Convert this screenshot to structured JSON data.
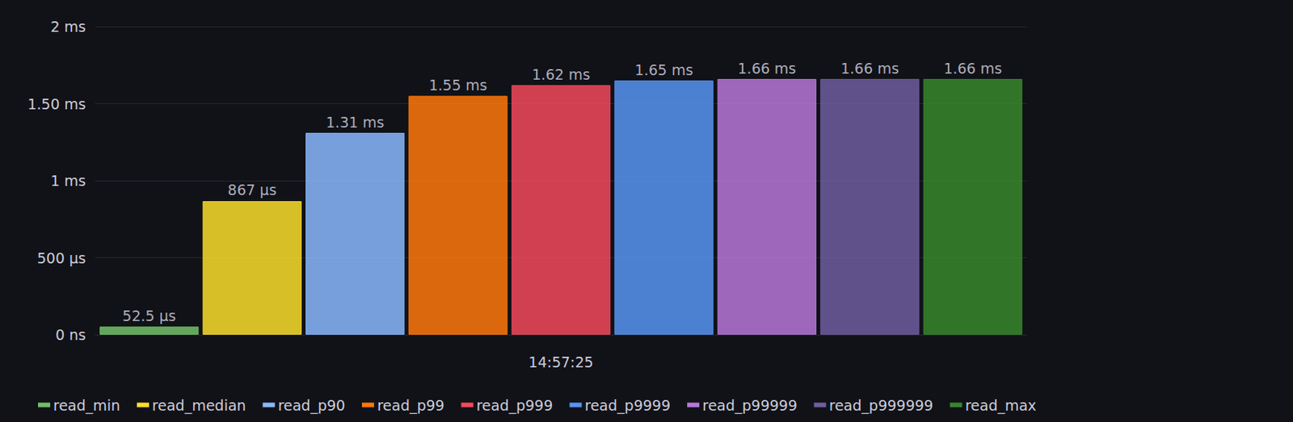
{
  "chart_data": {
    "type": "bar",
    "categories": [
      "14:57:25"
    ],
    "series": [
      {
        "name": "read_min",
        "color": "#73BF69",
        "values": [
          0.0525
        ],
        "value_labels": [
          "52.5 µs"
        ]
      },
      {
        "name": "read_median",
        "color": "#FADE2A",
        "values": [
          0.867
        ],
        "value_labels": [
          "867 µs"
        ]
      },
      {
        "name": "read_p90",
        "color": "#8AB8FF",
        "values": [
          1.31
        ],
        "value_labels": [
          "1.31 ms"
        ]
      },
      {
        "name": "read_p99",
        "color": "#FF780A",
        "values": [
          1.55
        ],
        "value_labels": [
          "1.55 ms"
        ]
      },
      {
        "name": "read_p999",
        "color": "#F2495C",
        "values": [
          1.62
        ],
        "value_labels": [
          "1.62 ms"
        ]
      },
      {
        "name": "read_p9999",
        "color": "#5794F2",
        "values": [
          1.65
        ],
        "value_labels": [
          "1.65 ms"
        ]
      },
      {
        "name": "read_p99999",
        "color": "#B877D9",
        "values": [
          1.66
        ],
        "value_labels": [
          "1.66 ms"
        ]
      },
      {
        "name": "read_p999999",
        "color": "#705DA0",
        "values": [
          1.66
        ],
        "value_labels": [
          "1.66 ms"
        ]
      },
      {
        "name": "read_max",
        "color": "#37872D",
        "values": [
          1.66
        ],
        "value_labels": [
          "1.66 ms"
        ]
      }
    ],
    "ylim": [
      0,
      2
    ],
    "yticks": [
      {
        "value": 0,
        "label": "0 ns"
      },
      {
        "value": 0.5,
        "label": "500 µs"
      },
      {
        "value": 1,
        "label": "1 ms"
      },
      {
        "value": 1.5,
        "label": "1.50 ms"
      },
      {
        "value": 2,
        "label": "2 ms"
      }
    ],
    "grid": true,
    "legend": "bottom",
    "data_labels": true
  }
}
